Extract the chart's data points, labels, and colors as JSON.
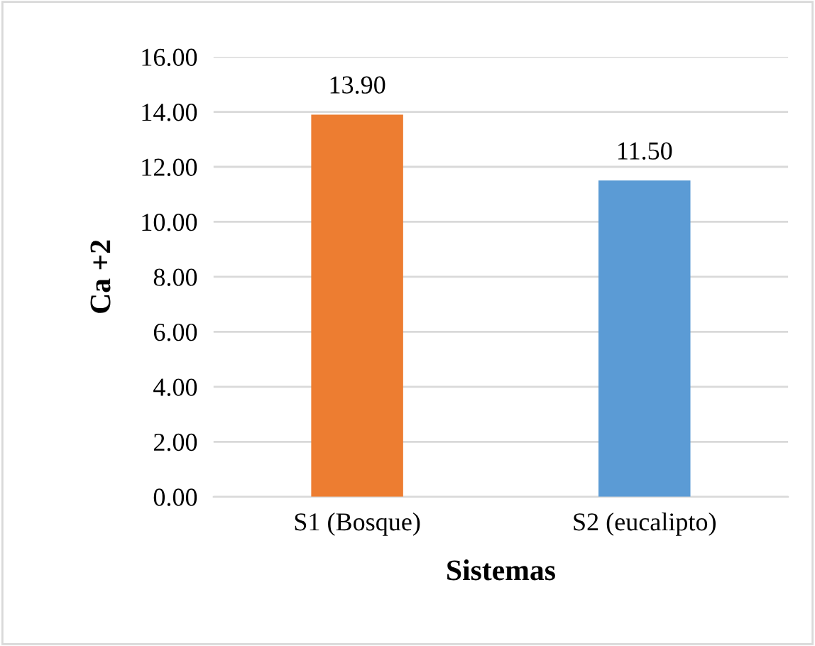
{
  "chart_data": {
    "type": "bar",
    "xlabel": "Sistemas",
    "ylabel": "Ca +2",
    "categories": [
      "S1 (Bosque)",
      "S2 (eucalipto)"
    ],
    "values": [
      13.9,
      11.5
    ],
    "colors": [
      "#ed7d31",
      "#5b9bd5"
    ],
    "value_labels": [
      "13.90",
      "11.50"
    ],
    "ylim": [
      0,
      16
    ],
    "yticks": [
      {
        "value": 0,
        "label": "0.00"
      },
      {
        "value": 2,
        "label": "2.00"
      },
      {
        "value": 4,
        "label": "4.00"
      },
      {
        "value": 6,
        "label": "6.00"
      },
      {
        "value": 8,
        "label": "8.00"
      },
      {
        "value": 10,
        "label": "10.00"
      },
      {
        "value": 12,
        "label": "12.00"
      },
      {
        "value": 14,
        "label": "14.00"
      },
      {
        "value": 16,
        "label": "16.00"
      }
    ],
    "grid": "y",
    "legend": false
  }
}
